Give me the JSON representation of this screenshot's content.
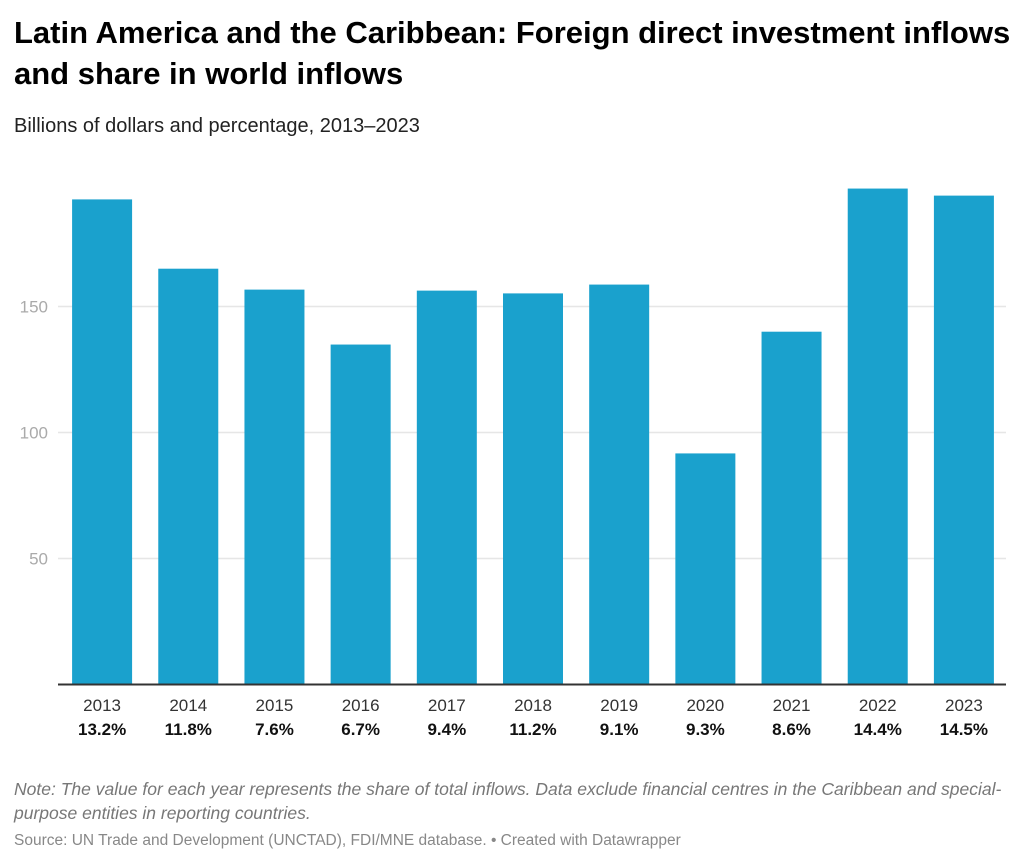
{
  "header": {
    "title": "Latin America and the Caribbean: Foreign direct investment inflows and share in world inflows",
    "subtitle": "Billions of dollars and percentage, 2013–2023"
  },
  "footer": {
    "note": "Note: The value for each year represents the share of total inflows. Data exclude financial centres in the Caribbean and special-purpose entities in reporting countries.",
    "source": "Source: UN Trade and Development (UNCTAD), FDI/MNE database. • Created with Datawrapper"
  },
  "chart_data": {
    "type": "bar",
    "title": "Latin America and the Caribbean: Foreign direct investment inflows and share in world inflows",
    "subtitle": "Billions of dollars and percentage, 2013–2023",
    "categories": [
      "2013",
      "2014",
      "2015",
      "2016",
      "2017",
      "2018",
      "2019",
      "2020",
      "2021",
      "2022",
      "2023"
    ],
    "values": [
      192.5,
      165,
      156.7,
      134.9,
      156.3,
      155.2,
      158.7,
      91.7,
      140,
      196.8,
      194
    ],
    "share_labels": [
      "13.2%",
      "11.8%",
      "7.6%",
      "6.7%",
      "9.4%",
      "11.2%",
      "9.1%",
      "9.3%",
      "8.6%",
      "14.4%",
      "14.5%"
    ],
    "yticks": [
      50,
      100,
      150
    ],
    "ylim": [
      0,
      200
    ],
    "grid": true,
    "bar_color": "#1aa1cd"
  }
}
